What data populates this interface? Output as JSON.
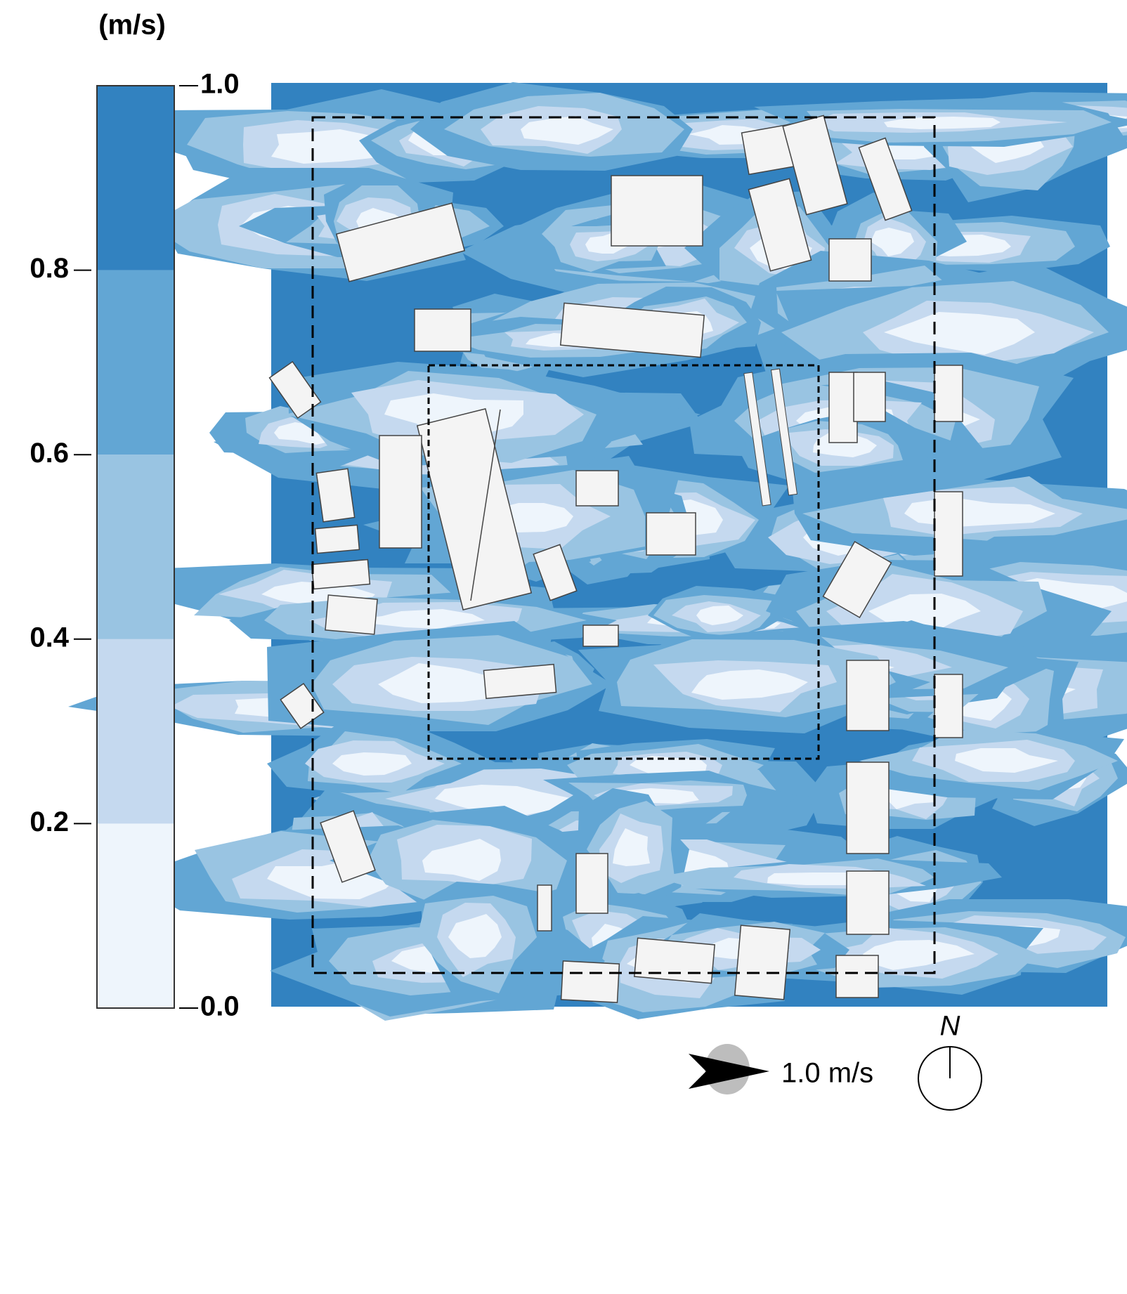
{
  "colorbar": {
    "unit": "(m/s)",
    "ticks": [
      {
        "value": 0.0,
        "label": "0.0"
      },
      0.2,
      0.4,
      0.6,
      0.8,
      {
        "value": 1.0,
        "label": "1.0"
      }
    ],
    "colors": [
      "#eef5fc",
      "#c5d9ef",
      "#99c4e2",
      "#62a6d4",
      "#3282c0"
    ]
  },
  "scale_arrow": {
    "label": "1.0 m/s"
  },
  "compass": {
    "label": "N"
  }
}
